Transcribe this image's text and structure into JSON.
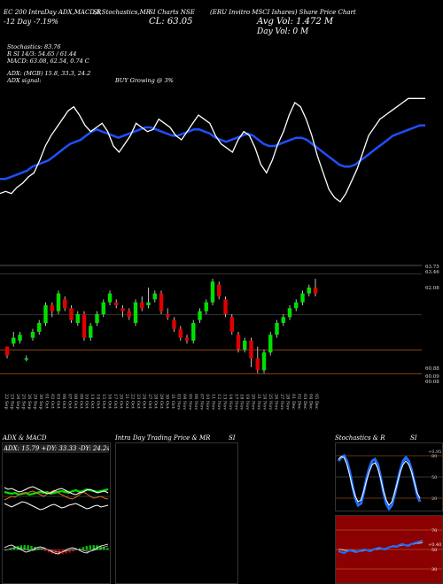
{
  "header": {
    "row1": [
      "EC 200 IntraDay ADX,MACD,R",
      "SI,Stochastics,MR",
      "SI Charts NSE",
      "(ERU Invitro MSCI Ishares) Share Price Chart"
    ],
    "row2_left": "-12 Day -7.19%",
    "row2_mid": "CL: 63.05",
    "vol_line": "Avg Vol: 1.472 M",
    "day_vol": "Day Vol: 0  M"
  },
  "stats": {
    "stochastics": "Stochastics: 83.76",
    "rsi": "R SI 14/3: 54.65 / 61.44",
    "macd": "MACD: 63.08, 62.54, 0.74  C",
    "adx": "ADX: (MGB) 15.8, 33.3, 24.2",
    "adx_signal": "ADX  signal:",
    "buy_signal": "BUY Growing @ 3%"
  },
  "price_levels": [
    "63.75",
    "63.46",
    "62.08",
    "60.88",
    "60.09",
    "60.08"
  ],
  "date_labels": [
    "22 Sep",
    "23 Sep",
    "24 Sep",
    "25 Sep",
    "26 Sep",
    "29 Sep",
    "30 Sep",
    "01 Oct",
    "02 Oct",
    "03 Oct",
    "06 Oct",
    "07 Oct",
    "08 Oct",
    "09 Oct",
    "10 Oct",
    "13 Oct",
    "14 Oct",
    "15 Oct",
    "16 Oct",
    "17 Oct",
    "20 Oct",
    "21 Oct",
    "22 Oct",
    "23 Oct",
    "24 Oct",
    "27 Oct",
    "28 Oct",
    "29 Oct",
    "30 Oct",
    "31 Oct",
    "03 Nov",
    "04 Nov",
    "05 Nov",
    "06 Nov",
    "07 Nov",
    "10 Nov",
    "11 Nov",
    "12 Nov",
    "13 Nov",
    "14 Nov",
    "17 Nov",
    "18 Nov",
    "19 Nov",
    "20 Nov",
    "21 Nov",
    "24 Nov",
    "25 Nov",
    "26 Nov",
    "27 Nov",
    "28 Nov",
    "01 Dec",
    "02 Dec",
    "03 Dec",
    "04 Dec",
    "05 Dec"
  ],
  "panels": {
    "adx_macd_title": "ADX  & MACD",
    "adx_readout": "ADX: 15.79  +DY: 33.33  -DY: 24.24",
    "intraday_title": "Intra  Day Trading Price  & MR",
    "intraday_si": "SI",
    "stoch_title": "Stochastics & R",
    "stoch_si": "SI",
    "stoch_levels": [
      "80",
      "50",
      "20"
    ],
    "stoch_right": [
      "+0.95"
    ],
    "rsi_levels": [
      "70",
      "50",
      "30"
    ],
    "rsi_right": [
      "+0.40"
    ]
  },
  "colors": {
    "up": "#00e000",
    "down": "#e00000",
    "ma": "#1f4fff",
    "line": "#ffffff"
  },
  "chart_data": [
    {
      "type": "line",
      "series": [
        {
          "values": [
            49,
            49,
            50,
            51,
            52,
            53,
            55,
            56,
            57,
            58,
            60,
            62,
            64,
            66,
            67,
            68,
            70,
            72,
            73,
            72,
            71,
            70,
            69,
            70,
            71,
            72,
            73,
            74,
            74,
            73,
            72,
            71,
            70,
            70,
            71,
            72,
            73,
            73,
            72,
            71,
            69,
            68,
            67,
            68,
            69,
            70,
            71,
            70,
            68,
            66,
            65,
            65,
            66,
            67,
            68,
            69,
            69,
            68,
            66,
            64,
            62,
            60,
            58,
            56,
            55,
            55,
            56,
            58,
            60,
            62,
            64,
            66,
            68,
            70,
            71,
            72,
            73,
            74,
            75,
            75
          ]
        },
        {
          "values": [
            42,
            43,
            42,
            45,
            47,
            50,
            52,
            58,
            65,
            70,
            74,
            78,
            82,
            84,
            80,
            75,
            72,
            74,
            76,
            72,
            65,
            62,
            66,
            70,
            76,
            74,
            72,
            73,
            78,
            76,
            74,
            70,
            68,
            72,
            76,
            80,
            78,
            76,
            70,
            66,
            64,
            62,
            68,
            72,
            70,
            64,
            56,
            52,
            58,
            66,
            72,
            80,
            86,
            84,
            78,
            70,
            60,
            52,
            44,
            40,
            38,
            42,
            48,
            54,
            62,
            70,
            74,
            78,
            80,
            82,
            84,
            86,
            88,
            88,
            88,
            88
          ]
        }
      ]
    },
    {
      "type": "bar",
      "candles": [
        [
          61.0,
          60.7,
          61.0,
          60.6
        ],
        [
          61.1,
          61.3,
          61.5,
          61.0
        ],
        [
          61.2,
          61.4,
          61.5,
          61.1
        ],
        [
          60.6,
          60.6,
          60.7,
          60.5
        ],
        [
          61.3,
          61.5,
          61.6,
          61.2
        ],
        [
          61.5,
          61.8,
          61.9,
          61.4
        ],
        [
          61.8,
          62.4,
          62.5,
          61.7
        ],
        [
          62.4,
          62.2,
          62.5,
          62.0
        ],
        [
          62.2,
          62.8,
          62.9,
          62.1
        ],
        [
          62.6,
          62.3,
          62.7,
          62.2
        ],
        [
          62.3,
          61.9,
          62.4,
          61.8
        ],
        [
          61.8,
          62.1,
          62.2,
          61.7
        ],
        [
          62.1,
          61.3,
          62.2,
          61.2
        ],
        [
          61.3,
          61.7,
          61.8,
          61.2
        ],
        [
          61.8,
          62.1,
          62.2,
          61.7
        ],
        [
          62.1,
          62.5,
          62.6,
          62.0
        ],
        [
          62.5,
          62.8,
          62.9,
          62.4
        ],
        [
          62.5,
          62.4,
          62.6,
          62.3
        ],
        [
          62.3,
          62.2,
          62.4,
          62.0
        ],
        [
          62.2,
          62.0,
          62.3,
          61.9
        ],
        [
          61.8,
          62.5,
          62.6,
          61.7
        ],
        [
          62.5,
          62.3,
          62.7,
          62.2
        ],
        [
          62.4,
          62.5,
          63.0,
          62.3
        ],
        [
          62.6,
          62.8,
          62.9,
          62.5
        ],
        [
          62.8,
          62.2,
          62.9,
          62.1
        ],
        [
          62.1,
          62.0,
          62.3,
          61.9
        ],
        [
          61.9,
          61.6,
          62.0,
          61.5
        ],
        [
          61.6,
          61.3,
          61.7,
          61.2
        ],
        [
          61.3,
          61.2,
          61.4,
          61.1
        ],
        [
          61.2,
          61.8,
          61.9,
          61.1
        ],
        [
          61.9,
          62.2,
          62.3,
          61.8
        ],
        [
          62.2,
          62.5,
          62.6,
          62.1
        ],
        [
          62.5,
          63.2,
          63.3,
          62.4
        ],
        [
          63.1,
          62.7,
          63.2,
          62.6
        ],
        [
          62.6,
          62.1,
          62.7,
          62.0
        ],
        [
          62.0,
          61.5,
          62.1,
          61.4
        ],
        [
          61.4,
          60.9,
          61.5,
          60.8
        ],
        [
          60.9,
          61.2,
          61.3,
          60.8
        ],
        [
          61.2,
          60.6,
          61.3,
          60.3
        ],
        [
          60.6,
          60.2,
          61.0,
          60.1
        ],
        [
          60.2,
          60.8,
          60.9,
          60.1
        ],
        [
          60.8,
          61.4,
          61.5,
          60.7
        ],
        [
          61.4,
          61.8,
          61.9,
          61.3
        ],
        [
          61.8,
          62.0,
          62.1,
          61.7
        ],
        [
          62.0,
          62.3,
          62.4,
          61.9
        ],
        [
          62.3,
          62.5,
          62.6,
          62.2
        ],
        [
          62.5,
          62.8,
          62.9,
          62.4
        ],
        [
          62.8,
          63.0,
          63.1,
          62.7
        ],
        [
          63.0,
          62.8,
          63.3,
          62.7
        ]
      ],
      "ylim": [
        59.7,
        63.9
      ]
    }
  ]
}
